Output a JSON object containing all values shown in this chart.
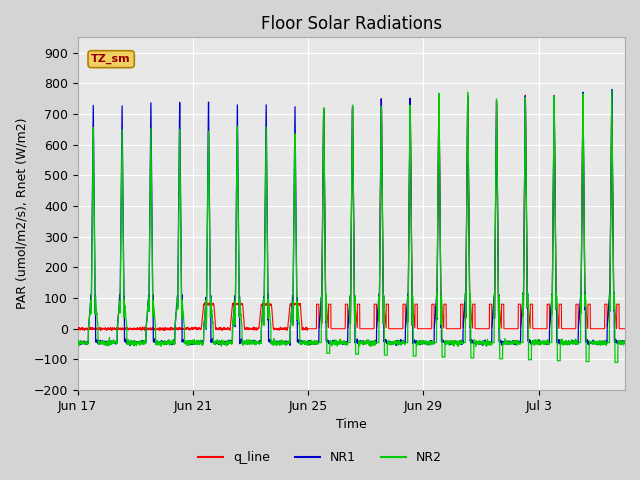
{
  "title": "Floor Solar Radiations",
  "xlabel": "Time",
  "ylabel": "PAR (umol/m2/s), Rnet (W/m2)",
  "ylim": [
    -200,
    950
  ],
  "yticks": [
    -200,
    -100,
    0,
    100,
    200,
    300,
    400,
    500,
    600,
    700,
    800,
    900
  ],
  "xtick_dates": [
    "Jun 17",
    "Jun 21",
    "Jun 25",
    "Jun 29",
    "Jul 3"
  ],
  "xtick_positions": [
    0,
    4,
    8,
    12,
    16
  ],
  "legend_labels": [
    "q_line",
    "NR1",
    "NR2"
  ],
  "line_colors": {
    "q_line": "#ff0000",
    "NR1": "#0000cc",
    "NR2": "#00cc00"
  },
  "fig_bg_color": "#d4d4d4",
  "plot_bg_color": "#e8e8e8",
  "grid_color": "#ffffff",
  "annotation_text": "TZ_sm",
  "annotation_bg": "#f0d060",
  "annotation_border": "#b08000",
  "title_fontsize": 12,
  "axis_label_fontsize": 9,
  "tick_fontsize": 9,
  "n_days": 19
}
